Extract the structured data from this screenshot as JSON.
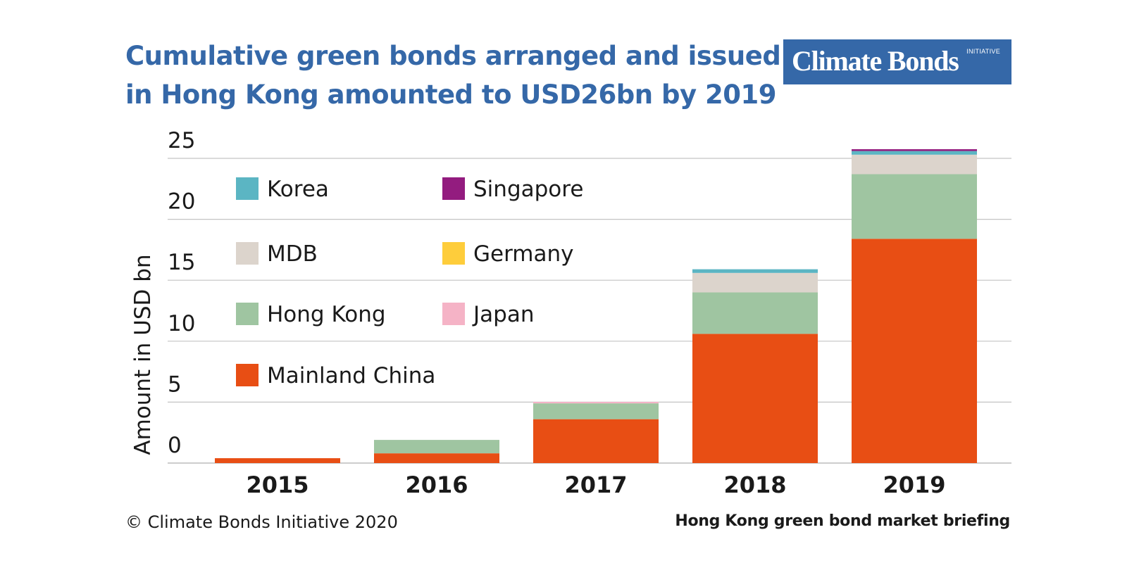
{
  "header": {
    "title_line1": "Cumulative green bonds arranged and issued",
    "title_line2": "in Hong Kong amounted to USD26bn by 2019"
  },
  "logo": {
    "main": "Climate Bonds",
    "small": "INITIATIVE"
  },
  "footer": {
    "copyright": "© Climate Bonds Initiative 2020",
    "source": "Hong Kong green bond market briefing"
  },
  "chart_data": {
    "type": "bar",
    "stacked": true,
    "title": "",
    "xlabel": "",
    "ylabel": "Amount in USD bn",
    "ylim": [
      0,
      25
    ],
    "ytick_values": [
      0,
      5,
      10,
      15,
      20,
      25
    ],
    "grid": true,
    "legend_placement": "top-left",
    "categories": [
      "2015",
      "2016",
      "2017",
      "2018",
      "2019"
    ],
    "series": [
      {
        "name": "Mainland China",
        "color": "#e84e14",
        "values": [
          0.4,
          0.8,
          3.6,
          10.6,
          18.4
        ]
      },
      {
        "name": "Hong Kong",
        "color": "#9fc5a1",
        "values": [
          0,
          1.1,
          1.3,
          3.4,
          5.3
        ]
      },
      {
        "name": "MDB",
        "color": "#dcd4cc",
        "values": [
          0,
          0,
          0,
          1.6,
          1.6
        ]
      },
      {
        "name": "Korea",
        "color": "#5bb5c3",
        "values": [
          0,
          0,
          0,
          0.3,
          0.3
        ]
      },
      {
        "name": "Singapore",
        "color": "#931c7f",
        "values": [
          0,
          0,
          0,
          0,
          0.15
        ]
      },
      {
        "name": "Germany",
        "color": "#fecd3b",
        "values": [
          0,
          0,
          0,
          0,
          0
        ]
      },
      {
        "name": "Japan",
        "color": "#f5b3c6",
        "values": [
          0,
          0,
          0.12,
          0,
          0
        ]
      }
    ],
    "legend_order": [
      "Korea",
      "Singapore",
      "MDB",
      "Germany",
      "Hong Kong",
      "Japan",
      "Mainland China"
    ]
  }
}
